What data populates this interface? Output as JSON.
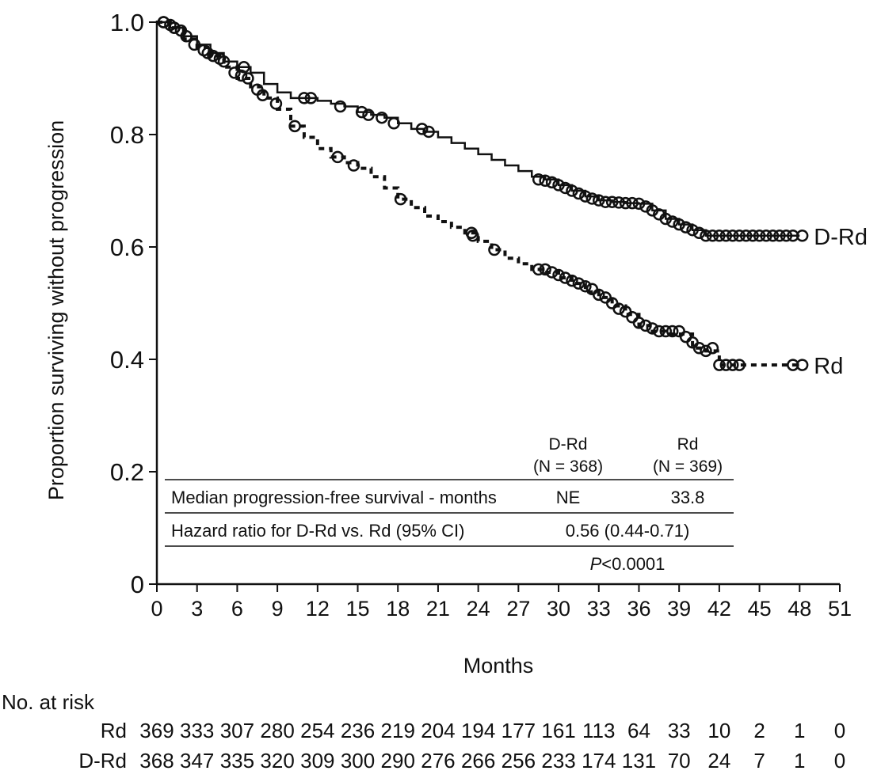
{
  "chart_data": {
    "type": "line",
    "subtype": "kaplan-meier",
    "title": "",
    "xlabel": "Months",
    "ylabel": "Proportion surviving without progression",
    "xlim": [
      0,
      51
    ],
    "ylim": [
      0,
      1.0
    ],
    "x_ticks": [
      "0",
      "3",
      "6",
      "9",
      "12",
      "15",
      "18",
      "21",
      "24",
      "27",
      "30",
      "33",
      "36",
      "39",
      "42",
      "45",
      "48",
      "51"
    ],
    "y_ticks": [
      "0",
      "0.2",
      "0.4",
      "0.6",
      "0.8",
      "1.0"
    ],
    "series": [
      {
        "name": "D-Rd",
        "style": "solid",
        "color": "#111111",
        "points": [
          [
            0,
            1.0
          ],
          [
            1,
            0.99
          ],
          [
            2,
            0.975
          ],
          [
            3,
            0.96
          ],
          [
            4,
            0.945
          ],
          [
            5,
            0.93
          ],
          [
            6,
            0.92
          ],
          [
            7,
            0.91
          ],
          [
            8,
            0.89
          ],
          [
            9,
            0.875
          ],
          [
            10,
            0.865
          ],
          [
            11,
            0.865
          ],
          [
            12,
            0.86
          ],
          [
            13,
            0.855
          ],
          [
            14,
            0.85
          ],
          [
            15,
            0.84
          ],
          [
            16,
            0.835
          ],
          [
            17,
            0.83
          ],
          [
            18,
            0.82
          ],
          [
            19,
            0.81
          ],
          [
            20,
            0.805
          ],
          [
            21,
            0.795
          ],
          [
            22,
            0.785
          ],
          [
            23,
            0.775
          ],
          [
            24,
            0.765
          ],
          [
            25,
            0.755
          ],
          [
            26,
            0.745
          ],
          [
            27,
            0.735
          ],
          [
            28,
            0.725
          ],
          [
            29,
            0.72
          ],
          [
            30,
            0.71
          ],
          [
            31,
            0.7
          ],
          [
            32,
            0.69
          ],
          [
            33,
            0.683
          ],
          [
            34,
            0.68
          ],
          [
            35,
            0.678
          ],
          [
            36,
            0.677
          ],
          [
            37,
            0.665
          ],
          [
            38,
            0.65
          ],
          [
            39,
            0.64
          ],
          [
            40,
            0.63
          ],
          [
            41,
            0.62
          ],
          [
            42,
            0.62
          ],
          [
            44,
            0.62
          ],
          [
            46,
            0.62
          ],
          [
            48,
            0.62
          ]
        ],
        "censor_marks": [
          [
            0.5,
            1.0
          ],
          [
            1.0,
            0.995
          ],
          [
            1.3,
            0.99
          ],
          [
            1.8,
            0.985
          ],
          [
            3.8,
            0.945
          ],
          [
            4.7,
            0.935
          ],
          [
            6.5,
            0.92
          ],
          [
            11.0,
            0.865
          ],
          [
            11.5,
            0.865
          ],
          [
            13.7,
            0.85
          ],
          [
            15.3,
            0.84
          ],
          [
            15.8,
            0.835
          ],
          [
            16.8,
            0.83
          ],
          [
            17.7,
            0.82
          ],
          [
            19.8,
            0.81
          ],
          [
            20.3,
            0.805
          ],
          [
            28.5,
            0.72
          ],
          [
            29.0,
            0.718
          ],
          [
            29.5,
            0.715
          ],
          [
            30.0,
            0.71
          ],
          [
            30.5,
            0.705
          ],
          [
            31.0,
            0.7
          ],
          [
            31.5,
            0.695
          ],
          [
            32.0,
            0.69
          ],
          [
            32.5,
            0.686
          ],
          [
            33.0,
            0.683
          ],
          [
            33.5,
            0.68
          ],
          [
            34.0,
            0.68
          ],
          [
            34.5,
            0.679
          ],
          [
            35.0,
            0.678
          ],
          [
            35.5,
            0.678
          ],
          [
            36.0,
            0.677
          ],
          [
            36.5,
            0.672
          ],
          [
            37.0,
            0.665
          ],
          [
            37.5,
            0.658
          ],
          [
            38.0,
            0.65
          ],
          [
            38.5,
            0.645
          ],
          [
            39.0,
            0.64
          ],
          [
            39.5,
            0.635
          ],
          [
            40.0,
            0.63
          ],
          [
            40.5,
            0.625
          ],
          [
            41.0,
            0.62
          ],
          [
            41.5,
            0.62
          ],
          [
            42.0,
            0.62
          ],
          [
            42.5,
            0.62
          ],
          [
            43.0,
            0.62
          ],
          [
            43.5,
            0.62
          ],
          [
            44.0,
            0.62
          ],
          [
            44.5,
            0.62
          ],
          [
            45.0,
            0.62
          ],
          [
            45.5,
            0.62
          ],
          [
            46.0,
            0.62
          ],
          [
            46.5,
            0.62
          ],
          [
            47.0,
            0.62
          ],
          [
            47.5,
            0.62
          ],
          [
            48.2,
            0.62
          ]
        ]
      },
      {
        "name": "Rd",
        "style": "dashed",
        "color": "#111111",
        "points": [
          [
            0,
            1.0
          ],
          [
            1,
            0.99
          ],
          [
            2,
            0.97
          ],
          [
            3,
            0.955
          ],
          [
            4,
            0.94
          ],
          [
            5,
            0.92
          ],
          [
            6,
            0.9
          ],
          [
            7,
            0.885
          ],
          [
            8,
            0.865
          ],
          [
            9,
            0.845
          ],
          [
            10,
            0.815
          ],
          [
            11,
            0.795
          ],
          [
            12,
            0.775
          ],
          [
            13,
            0.76
          ],
          [
            14,
            0.75
          ],
          [
            15,
            0.74
          ],
          [
            16,
            0.725
          ],
          [
            17,
            0.705
          ],
          [
            18,
            0.685
          ],
          [
            19,
            0.67
          ],
          [
            20,
            0.655
          ],
          [
            21,
            0.645
          ],
          [
            22,
            0.635
          ],
          [
            23,
            0.625
          ],
          [
            24,
            0.61
          ],
          [
            25,
            0.595
          ],
          [
            26,
            0.58
          ],
          [
            27,
            0.57
          ],
          [
            28,
            0.56
          ],
          [
            29,
            0.555
          ],
          [
            30,
            0.545
          ],
          [
            31,
            0.535
          ],
          [
            32,
            0.52
          ],
          [
            33,
            0.51
          ],
          [
            34,
            0.495
          ],
          [
            35,
            0.48
          ],
          [
            36,
            0.46
          ],
          [
            37,
            0.45
          ],
          [
            38,
            0.445
          ],
          [
            39,
            0.445
          ],
          [
            40,
            0.42
          ],
          [
            41,
            0.415
          ],
          [
            42,
            0.39
          ],
          [
            44,
            0.39
          ],
          [
            46,
            0.39
          ],
          [
            48,
            0.39
          ]
        ],
        "censor_marks": [
          [
            0.5,
            1.0
          ],
          [
            1.3,
            0.99
          ],
          [
            2.2,
            0.975
          ],
          [
            2.8,
            0.96
          ],
          [
            3.5,
            0.95
          ],
          [
            4.2,
            0.94
          ],
          [
            5.0,
            0.93
          ],
          [
            5.8,
            0.91
          ],
          [
            6.3,
            0.905
          ],
          [
            6.8,
            0.9
          ],
          [
            7.5,
            0.88
          ],
          [
            7.9,
            0.87
          ],
          [
            8.9,
            0.855
          ],
          [
            10.3,
            0.815
          ],
          [
            13.5,
            0.76
          ],
          [
            14.7,
            0.745
          ],
          [
            18.2,
            0.685
          ],
          [
            23.5,
            0.625
          ],
          [
            23.6,
            0.62
          ],
          [
            25.2,
            0.595
          ],
          [
            28.5,
            0.56
          ],
          [
            29.0,
            0.56
          ],
          [
            29.5,
            0.555
          ],
          [
            30.0,
            0.55
          ],
          [
            30.5,
            0.545
          ],
          [
            31.0,
            0.54
          ],
          [
            31.5,
            0.535
          ],
          [
            32.0,
            0.53
          ],
          [
            32.5,
            0.525
          ],
          [
            33.0,
            0.515
          ],
          [
            33.5,
            0.51
          ],
          [
            34.0,
            0.5
          ],
          [
            34.5,
            0.49
          ],
          [
            35.0,
            0.485
          ],
          [
            35.5,
            0.475
          ],
          [
            36.0,
            0.465
          ],
          [
            36.5,
            0.46
          ],
          [
            37.0,
            0.455
          ],
          [
            37.5,
            0.45
          ],
          [
            38.0,
            0.45
          ],
          [
            38.5,
            0.45
          ],
          [
            39.0,
            0.45
          ],
          [
            39.5,
            0.44
          ],
          [
            40.0,
            0.43
          ],
          [
            40.5,
            0.42
          ],
          [
            41.0,
            0.415
          ],
          [
            41.5,
            0.42
          ],
          [
            42.0,
            0.39
          ],
          [
            42.5,
            0.39
          ],
          [
            43.0,
            0.39
          ],
          [
            43.5,
            0.39
          ],
          [
            47.5,
            0.39
          ],
          [
            48.2,
            0.39
          ]
        ]
      }
    ],
    "summary_table": {
      "col1_label": "D-Rd",
      "col1_n": "(N = 368)",
      "col2_label": "Rd",
      "col2_n": "(N = 369)",
      "rows": [
        {
          "label": "Median progression-free survival - months",
          "col1": "NE",
          "col2": "33.8"
        },
        {
          "label": "Hazard ratio for D-Rd vs. Rd (95% CI)",
          "merged": "0.56 (0.44-0.71)"
        }
      ],
      "p_label": "P",
      "p_value": "<0.0001"
    },
    "at_risk": {
      "title": "No. at risk",
      "rows": [
        {
          "name": "Rd",
          "values": [
            "369",
            "333",
            "307",
            "280",
            "254",
            "236",
            "219",
            "204",
            "194",
            "177",
            "161",
            "113",
            "64",
            "33",
            "10",
            "2",
            "1",
            "0"
          ]
        },
        {
          "name": "D-Rd",
          "values": [
            "368",
            "347",
            "335",
            "320",
            "309",
            "300",
            "290",
            "276",
            "266",
            "256",
            "233",
            "174",
            "131",
            "70",
            "24",
            "7",
            "1",
            "0"
          ]
        }
      ]
    }
  }
}
